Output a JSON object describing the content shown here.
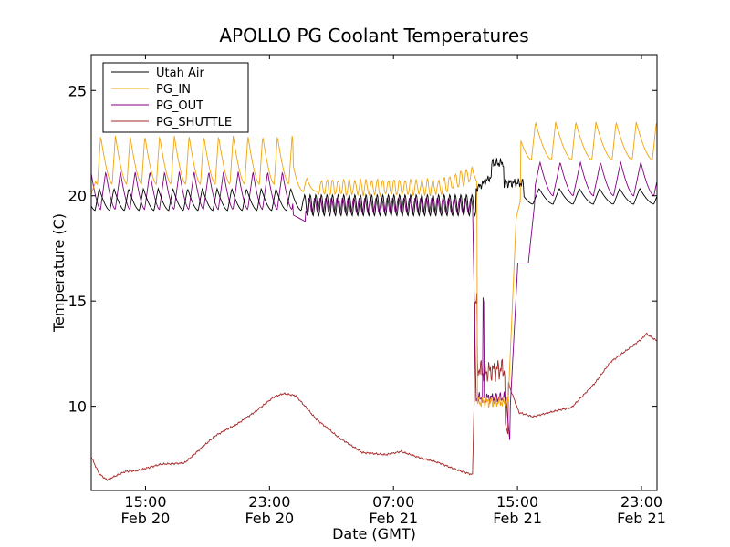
{
  "chart_data": {
    "type": "line",
    "title": "APOLLO PG Coolant Temperatures",
    "xlabel": "Date (GMT)",
    "ylabel": "Temperature (C)",
    "xlim_hours": [
      0,
      36.5
    ],
    "ylim": [
      6.0,
      26.7
    ],
    "yticks": [
      {
        "value": 10,
        "label": "10"
      },
      {
        "value": 15,
        "label": "15"
      },
      {
        "value": 20,
        "label": "20"
      },
      {
        "value": 25,
        "label": "25"
      }
    ],
    "xticks": [
      {
        "hour": 3.5,
        "time": "15:00",
        "date": "Feb 20"
      },
      {
        "hour": 11.5,
        "time": "23:00",
        "date": "Feb 20"
      },
      {
        "hour": 19.5,
        "time": "07:00",
        "date": "Feb 21"
      },
      {
        "hour": 27.5,
        "time": "15:00",
        "date": "Feb 21"
      },
      {
        "hour": 35.5,
        "time": "23:00",
        "date": "Feb 21"
      }
    ],
    "legend_position": "top-left",
    "series": [
      {
        "name": "Utah Air",
        "color": "#000000"
      },
      {
        "name": "PG_IN",
        "color": "#f0a30a"
      },
      {
        "name": "PG_OUT",
        "color": "#800080"
      },
      {
        "name": "PG_SHUTTLE",
        "color": "#a52a2a"
      }
    ]
  }
}
